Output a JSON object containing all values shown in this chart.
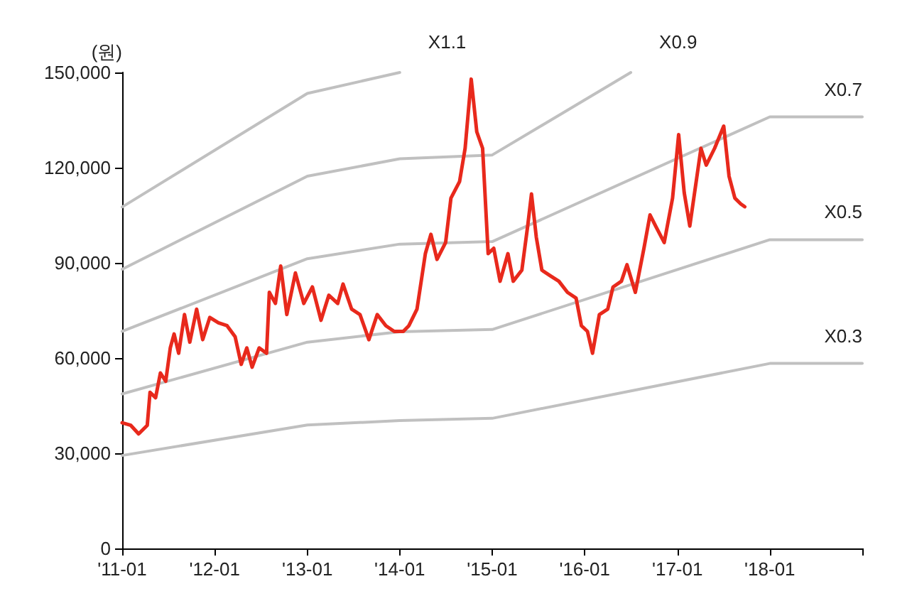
{
  "chart_data": {
    "type": "line",
    "ylabel": "(원)",
    "xlim": [
      "2011-01",
      "2019-01"
    ],
    "ylim": [
      0,
      150000
    ],
    "xticks": [
      {
        "value": "2011-01",
        "label": "'11-01"
      },
      {
        "value": "2012-01",
        "label": "'12-01"
      },
      {
        "value": "2013-01",
        "label": "'13-01"
      },
      {
        "value": "2014-01",
        "label": "'14-01"
      },
      {
        "value": "2015-01",
        "label": "'15-01"
      },
      {
        "value": "2016-01",
        "label": "'16-01"
      },
      {
        "value": "2017-01",
        "label": "'17-01"
      },
      {
        "value": "2018-01",
        "label": "'18-01"
      },
      {
        "value": "2019-01",
        "label": null
      }
    ],
    "yticks": [
      0,
      {
        "value": 30000,
        "label": "30,000"
      },
      {
        "value": 60000,
        "label": "60,000"
      },
      {
        "value": 90000,
        "label": "90,000"
      },
      {
        "value": 120000,
        "label": "120,000"
      },
      {
        "value": 150000,
        "label": "150,000"
      }
    ],
    "grid": false,
    "legend": false,
    "marker": "none",
    "series": [
      {
        "name": "X1.1",
        "color": "#c0c0c0",
        "x": [
          "2011-01",
          "2013-01",
          "2014-01"
        ],
        "values": [
          107600,
          143400,
          150000
        ]
      },
      {
        "name": "X0.9",
        "color": "#c0c0c0",
        "x": [
          "2011-01",
          "2013-01",
          "2014-01",
          "2015-01",
          "2016-07"
        ],
        "values": [
          88000,
          117300,
          122800,
          124000,
          150000
        ]
      },
      {
        "name": "X0.7",
        "color": "#c0c0c0",
        "x": [
          "2011-01",
          "2013-01",
          "2014-01",
          "2015-01",
          "2018-01",
          "2019-01"
        ],
        "values": [
          68400,
          91300,
          95900,
          96700,
          136000,
          136000
        ]
      },
      {
        "name": "X0.5",
        "color": "#c0c0c0",
        "x": [
          "2011-01",
          "2013-01",
          "2014-01",
          "2015-01",
          "2018-01",
          "2019-01"
        ],
        "values": [
          48700,
          65000,
          68300,
          69000,
          97300,
          97300
        ]
      },
      {
        "name": "X0.3",
        "color": "#c0c0c0",
        "x": [
          "2011-01",
          "2013-01",
          "2014-01",
          "2015-01",
          "2018-01",
          "2019-01"
        ],
        "values": [
          29300,
          38900,
          40300,
          41000,
          58300,
          58300
        ]
      },
      {
        "color": "#e8291c",
        "x": [
          "2011-01-01",
          "2011-02-04",
          "2011-03-07",
          "2011-04-10",
          "2011-04-21",
          "2011-05-13",
          "2011-06-01",
          "2011-06-22",
          "2011-07-10",
          "2011-07-25",
          "2011-08-12",
          "2011-09-04",
          "2011-09-25",
          "2011-10-22",
          "2011-11-15",
          "2011-12-13",
          "2012-01-16",
          "2012-02-19",
          "2012-03-22",
          "2012-04-15",
          "2012-05-07",
          "2012-05-28",
          "2012-06-25",
          "2012-07-24",
          "2012-08-04",
          "2012-08-28",
          "2012-09-18",
          "2012-10-12",
          "2012-11-15",
          "2012-12-18",
          "2013-01-21",
          "2013-02-24",
          "2013-03-27",
          "2013-05-01",
          "2013-05-22",
          "2013-06-25",
          "2013-07-28",
          "2013-09-01",
          "2013-10-04",
          "2013-11-07",
          "2013-12-10",
          "2014-01-15",
          "2014-02-06",
          "2014-03-10",
          "2014-04-12",
          "2014-05-04",
          "2014-05-28",
          "2014-07-01",
          "2014-07-22",
          "2014-08-25",
          "2014-09-16",
          "2014-10-10",
          "2014-11-01",
          "2014-11-24",
          "2014-12-16",
          "2015-01-07",
          "2015-02-01",
          "2015-03-04",
          "2015-03-25",
          "2015-04-28",
          "2015-05-21",
          "2015-06-05",
          "2015-06-24",
          "2015-07-16",
          "2015-08-19",
          "2015-09-21",
          "2015-10-25",
          "2015-11-28",
          "2015-12-19",
          "2016-01-12",
          "2016-02-01",
          "2016-02-28",
          "2016-04-01",
          "2016-04-22",
          "2016-05-25",
          "2016-06-16",
          "2016-07-19",
          "2016-08-22",
          "2016-09-15",
          "2016-10-07",
          "2016-11-10",
          "2016-12-13",
          "2017-01-06",
          "2017-01-28",
          "2017-02-19",
          "2017-03-13",
          "2017-04-04",
          "2017-04-25",
          "2017-05-28",
          "2017-07-03",
          "2017-07-24",
          "2017-08-16",
          "2017-09-08",
          "2017-09-24"
        ],
        "values": [
          39600,
          38800,
          36100,
          38800,
          49200,
          47500,
          55300,
          52700,
          63200,
          67600,
          61500,
          73700,
          65000,
          75400,
          65800,
          72800,
          71100,
          70200,
          66700,
          58000,
          63200,
          57100,
          63200,
          61500,
          80700,
          77200,
          89000,
          73700,
          86800,
          77200,
          82400,
          71900,
          79800,
          77200,
          83300,
          75400,
          73700,
          65800,
          73700,
          70200,
          68400,
          68400,
          70200,
          75400,
          92900,
          99000,
          91100,
          96400,
          110400,
          115600,
          126100,
          147900,
          131300,
          126100,
          92900,
          94600,
          84200,
          92900,
          84200,
          87700,
          101600,
          111700,
          98100,
          87700,
          85900,
          84200,
          80700,
          78900,
          70200,
          68400,
          61500,
          73700,
          75400,
          82400,
          84200,
          89400,
          80700,
          94600,
          105100,
          101600,
          96400,
          110400,
          130400,
          112100,
          101600,
          113800,
          126100,
          120800,
          126100,
          133100,
          117300,
          110400,
          108600,
          107700
        ]
      }
    ]
  }
}
